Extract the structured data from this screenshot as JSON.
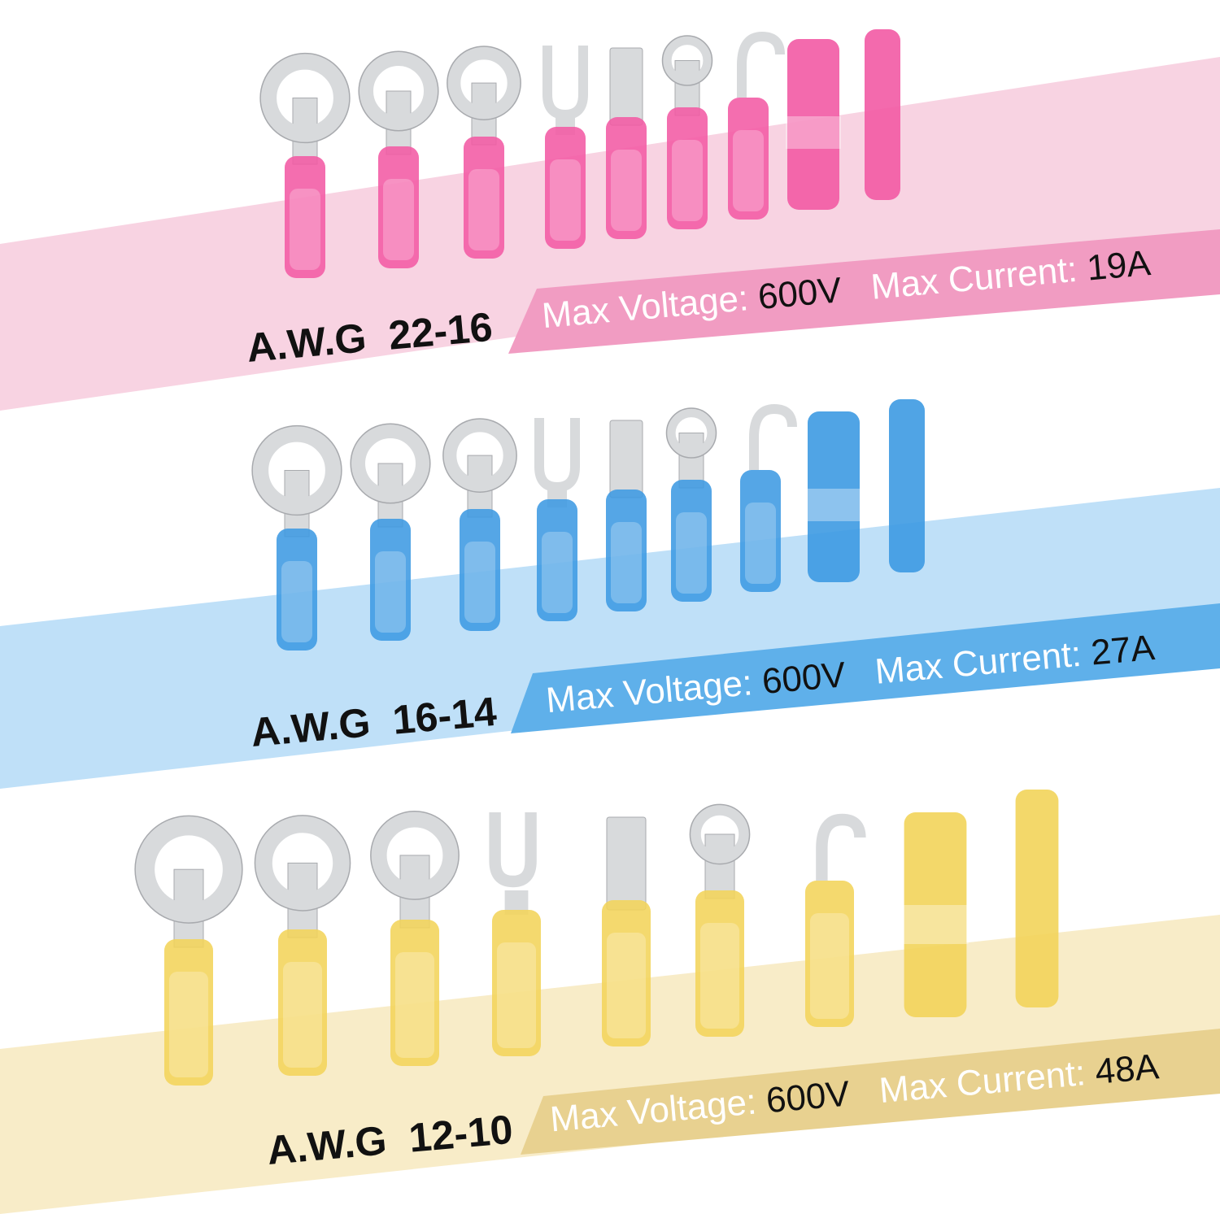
{
  "sections": [
    {
      "gauge": "A.W.G  22-16",
      "voltage_label": "Max Voltage:",
      "voltage": "600V",
      "current_label": "Max Current:",
      "current": "19A"
    },
    {
      "gauge": "A.W.G  16-14",
      "voltage_label": "Max Voltage:",
      "voltage": "600V",
      "current_label": "Max Current:",
      "current": "27A"
    },
    {
      "gauge": "A.W.G  12-10",
      "voltage_label": "Max Voltage:",
      "voltage": "600V",
      "current_label": "Max Current:",
      "current": "48A"
    }
  ]
}
